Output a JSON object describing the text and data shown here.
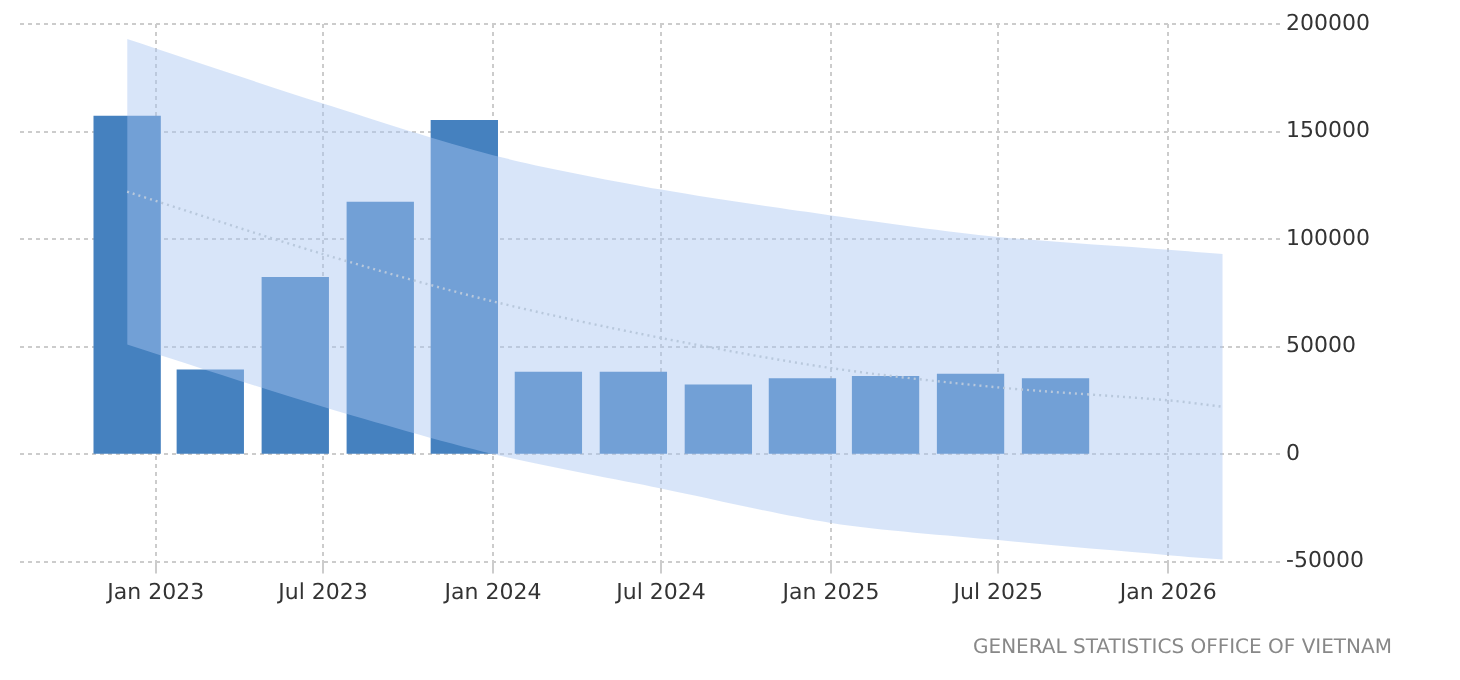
{
  "chart_data": {
    "type": "bar",
    "x": [
      "2022-12-01",
      "2023-03-01",
      "2023-06-01",
      "2023-09-01",
      "2023-12-01",
      "2024-03-01",
      "2024-06-01",
      "2024-09-01",
      "2024-12-01",
      "2025-03-01",
      "2025-06-01",
      "2025-09-01"
    ],
    "series": [
      {
        "color": "#4581bf",
        "values": [
          157000,
          39000,
          82000,
          117000,
          155000,
          38000,
          38000,
          32000,
          35000,
          36000,
          37000,
          35000
        ]
      },
      {
        "type": "line",
        "color": "#b8c8dc",
        "line_style": "dotted",
        "marker": "none",
        "x": [
          "2022-12-01",
          "2023-07-01",
          "2024-01-01",
          "2024-07-01",
          "2025-01-01",
          "2025-07-01",
          "2026-01-01",
          "2026-03-01"
        ],
        "values": [
          122000,
          93000,
          71000,
          54000,
          40000,
          31000,
          25000,
          22000
        ],
        "lower": [
          51000,
          22000,
          0,
          -16000,
          -32000,
          -40000,
          -47000,
          -49000
        ],
        "upper": [
          193000,
          163000,
          139000,
          123000,
          111000,
          101000,
          95000,
          93000
        ]
      }
    ],
    "xlim": [
      "2022-08-07",
      "2026-05-02"
    ],
    "xticks": [
      {
        "value": "2023-01-01",
        "label": "Jan 2023"
      },
      {
        "value": "2023-07-01",
        "label": "Jul 2023"
      },
      {
        "value": "2024-01-01",
        "label": "Jan 2024"
      },
      {
        "value": "2024-07-01",
        "label": "Jul 2024"
      },
      {
        "value": "2025-01-01",
        "label": "Jan 2025"
      },
      {
        "value": "2025-07-01",
        "label": "Jul 2025"
      },
      {
        "value": "2026-01-01",
        "label": "Jan 2026"
      }
    ],
    "ylim": [
      -50000,
      200000
    ],
    "yticks": [
      -50000,
      0,
      50000,
      100000,
      150000,
      200000
    ],
    "grid": true,
    "legend": false,
    "annotations": [
      "GENERAL STATISTICS OFFICE OF VIETNAM"
    ]
  }
}
